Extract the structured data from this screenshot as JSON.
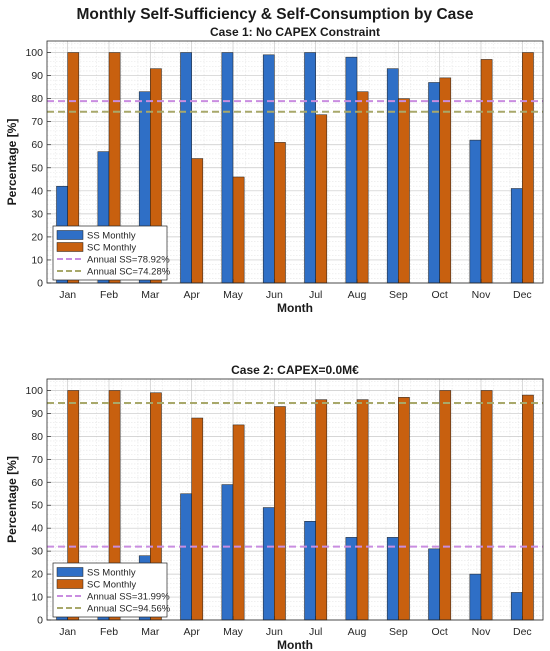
{
  "figure": {
    "title": "Monthly Self-Sufficiency & Self-Consumption by Case",
    "colors": {
      "ss": "#2f6fc6",
      "sc": "#c8600f",
      "annual_ss": "#c98de0",
      "annual_sc": "#a8a86a",
      "grid_major": "#c8c8c8",
      "grid_minor": "#e6e6e6"
    }
  },
  "chart_data": [
    {
      "type": "bar",
      "title": "Case 1: No CAPEX Constraint",
      "xlabel": "Month",
      "ylabel": "Percentage [%]",
      "ylim": [
        0,
        105
      ],
      "yticks": [
        0,
        10,
        20,
        30,
        40,
        50,
        60,
        70,
        80,
        90,
        100
      ],
      "grid": true,
      "legend_position": "bottom-left",
      "categories": [
        "Jan",
        "Feb",
        "Mar",
        "Apr",
        "May",
        "Jun",
        "Jul",
        "Aug",
        "Sep",
        "Oct",
        "Nov",
        "Dec"
      ],
      "series": [
        {
          "name": "SS Monthly",
          "color": "#2f6fc6",
          "values": [
            42,
            57,
            83,
            100,
            100,
            99,
            100,
            98,
            93,
            87,
            62,
            41
          ]
        },
        {
          "name": "SC Monthly",
          "color": "#c8600f",
          "values": [
            100,
            100,
            93,
            54,
            46,
            61,
            73,
            83,
            80,
            89,
            97,
            100
          ]
        }
      ],
      "reference_lines": [
        {
          "name": "Annual SS=78.92%",
          "value": 78.92,
          "color": "#c98de0"
        },
        {
          "name": "Annual SC=74.28%",
          "value": 74.28,
          "color": "#a8a86a"
        }
      ]
    },
    {
      "type": "bar",
      "title": "Case 2: CAPEX=0.0M€",
      "xlabel": "Month",
      "ylabel": "Percentage [%]",
      "ylim": [
        0,
        105
      ],
      "yticks": [
        0,
        10,
        20,
        30,
        40,
        50,
        60,
        70,
        80,
        90,
        100
      ],
      "grid": true,
      "legend_position": "bottom-left",
      "categories": [
        "Jan",
        "Feb",
        "Mar",
        "Apr",
        "May",
        "Jun",
        "Jul",
        "Aug",
        "Sep",
        "Oct",
        "Nov",
        "Dec"
      ],
      "series": [
        {
          "name": "SS Monthly",
          "color": "#2f6fc6",
          "values": [
            22,
            24,
            28,
            55,
            59,
            49,
            43,
            36,
            36,
            31,
            20,
            12
          ]
        },
        {
          "name": "SC Monthly",
          "color": "#c8600f",
          "values": [
            100,
            100,
            99,
            88,
            85,
            93,
            96,
            96,
            97,
            100,
            100,
            98
          ]
        }
      ],
      "reference_lines": [
        {
          "name": "Annual SS=31.99%",
          "value": 31.99,
          "color": "#c98de0"
        },
        {
          "name": "Annual SC=94.56%",
          "value": 94.56,
          "color": "#a8a86a"
        }
      ]
    }
  ]
}
